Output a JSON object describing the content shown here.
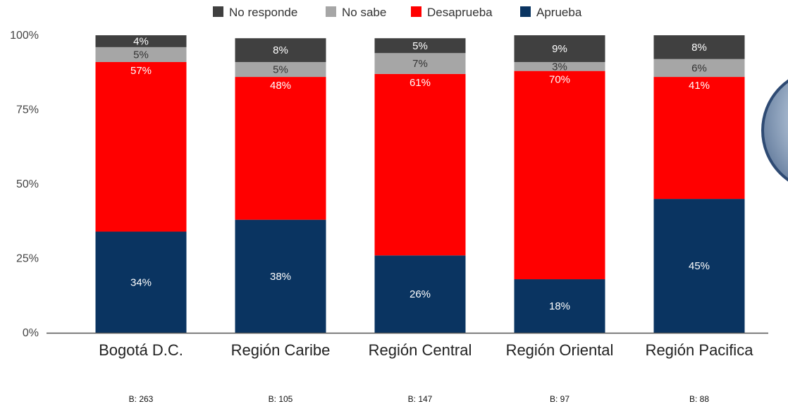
{
  "chart_data": {
    "type": "bar",
    "stacked": true,
    "categories": [
      "Bogotá D.C.",
      "Región Caribe",
      "Región Central",
      "Región Oriental",
      "Región Pacifica"
    ],
    "series": [
      {
        "name": "Aprueba",
        "color": "#0a3461",
        "values": [
          34,
          38,
          26,
          18,
          45
        ],
        "labels": [
          "34%",
          "38%",
          "26%",
          "18%",
          "45%"
        ]
      },
      {
        "name": "Desaprueba",
        "color": "#ff0000",
        "values": [
          57,
          48,
          61,
          70,
          41
        ],
        "labels": [
          "57%",
          "48%",
          "61%",
          "70%",
          "41%"
        ]
      },
      {
        "name": "No sabe",
        "color": "#a6a6a6",
        "values": [
          5,
          5,
          7,
          3,
          6
        ],
        "labels": [
          "5%",
          "5%",
          "7%",
          "3%",
          "6%"
        ]
      },
      {
        "name": "No responde",
        "color": "#404040",
        "values": [
          4,
          8,
          5,
          9,
          8
        ],
        "labels": [
          "4%",
          "8%",
          "5%",
          "9%",
          "8%"
        ]
      }
    ],
    "legend_order": [
      "No responde",
      "No sabe",
      "Desaprueba",
      "Aprueba"
    ],
    "legend_position": "top",
    "ylim": [
      0,
      100
    ],
    "yticks": [
      "0%",
      "25%",
      "50%",
      "75%",
      "100%"
    ],
    "bases": [
      "B: 263",
      "B: 105",
      "B: 147",
      "B: 97",
      "B: 88"
    ],
    "grid": false
  }
}
